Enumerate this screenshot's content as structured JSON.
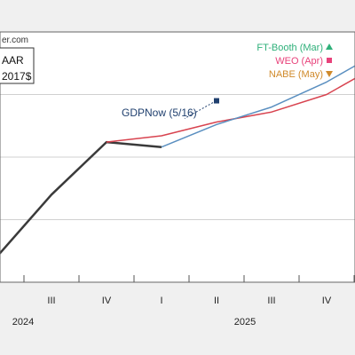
{
  "chart_data": {
    "type": "line",
    "source_fragment": "er.com",
    "unit_fragments": [
      "AAR",
      "2017$"
    ],
    "x_ticks": [
      "III",
      "IV",
      "I",
      "II",
      "III",
      "IV"
    ],
    "x_years": [
      "2024",
      "2025"
    ],
    "series": [
      {
        "name": "",
        "color": "#3a3a3a",
        "points": [
          [
            "2024Q2",
            -3
          ],
          [
            "2024Q3",
            2
          ],
          [
            "2024Q4",
            6.2
          ],
          [
            "2025Q1",
            5.8
          ]
        ]
      },
      {
        "name": "",
        "color": "#d8434f",
        "points": [
          [
            "2024Q4",
            6.2
          ],
          [
            "2025Q1",
            6.7
          ],
          [
            "2025Q2",
            7.8
          ],
          [
            "2025Q3",
            8.6
          ],
          [
            "2025Q4",
            10.0
          ],
          [
            "2026Q1",
            12.5
          ]
        ]
      },
      {
        "name": "",
        "color": "#5a8fc0",
        "points": [
          [
            "2025Q1",
            5.8
          ],
          [
            "2025Q2",
            7.6
          ],
          [
            "2025Q3",
            9.0
          ],
          [
            "2025Q4",
            11.0
          ],
          [
            "2026Q1",
            13.5
          ]
        ]
      }
    ],
    "gdpnow": {
      "label": "GDPNow (5/16)",
      "point": [
        "2025Q2",
        9.5
      ],
      "color": "#1f3f6e"
    },
    "legend": [
      {
        "label": "FT-Booth (Mar)",
        "color": "#2fb07a",
        "marker": "triangle-up-icon"
      },
      {
        "label": "WEO (Apr)",
        "color": "#e8417a",
        "marker": "square-icon"
      },
      {
        "label": "NABE (May)",
        "color": "#d08a2a",
        "marker": "triangle-down-icon"
      }
    ],
    "x_range": [
      "2024Q2",
      "2026Q1"
    ],
    "grid": "horizontal"
  }
}
